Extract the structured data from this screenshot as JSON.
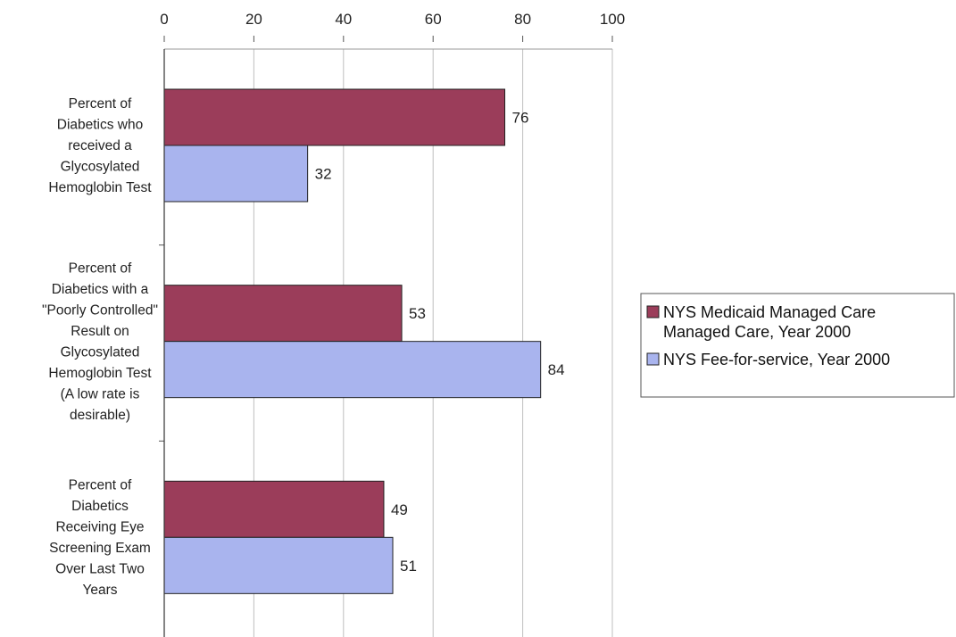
{
  "chart_data": {
    "type": "bar",
    "orientation": "horizontal",
    "title": "",
    "xlabel": "",
    "ylabel": "",
    "xlim": [
      0,
      100
    ],
    "x_ticks": [
      0,
      20,
      40,
      60,
      80,
      100
    ],
    "x_axis_position": "top",
    "grid": true,
    "legend_position": "right",
    "categories": [
      [
        "Percent of",
        "Diabetics who",
        "received a",
        "Glycosylated",
        "Hemoglobin Test"
      ],
      [
        "Percent of",
        "Diabetics with a",
        "\"Poorly Controlled\"",
        "Result on",
        "Glycosylated",
        "Hemoglobin Test",
        "(A low rate is",
        "desirable)"
      ],
      [
        "Percent of",
        "Diabetics",
        "Receiving Eye",
        "Screening Exam",
        "Over Last Two",
        "Years"
      ]
    ],
    "series": [
      {
        "name": [
          "NYS Medicaid Managed Care",
          "Managed Care, Year 2000"
        ],
        "color": "#9b3d5a",
        "values": [
          76,
          53,
          49
        ]
      },
      {
        "name": [
          "NYS Fee-for-service, Year 2000"
        ],
        "color": "#a9b4ee",
        "values": [
          32,
          84,
          51
        ]
      }
    ]
  }
}
